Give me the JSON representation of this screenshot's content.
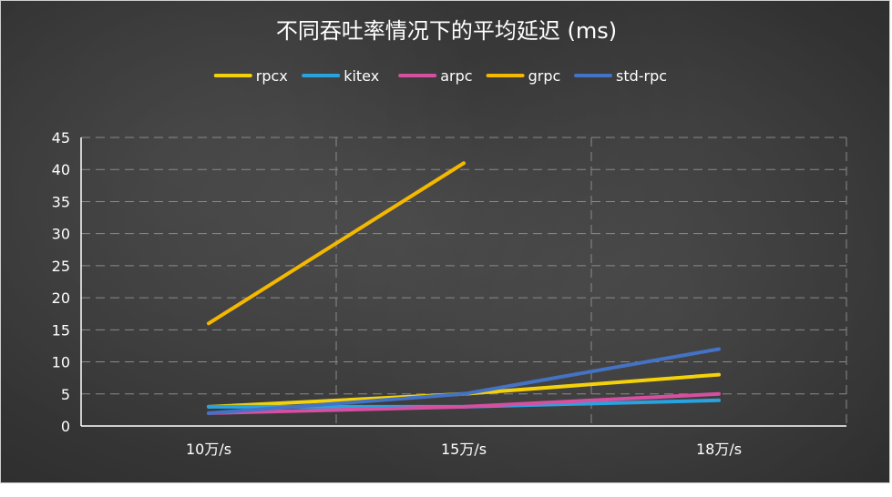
{
  "chart_data": {
    "type": "line",
    "title": "不同吞吐率情况下的平均延迟 (ms)",
    "categories": [
      "10万/s",
      "15万/s",
      "18万/s"
    ],
    "xlabel": "",
    "ylabel": "",
    "ylim": [
      0,
      45
    ],
    "yticks": [
      0,
      5,
      10,
      15,
      20,
      25,
      30,
      35,
      40,
      45
    ],
    "grid": true,
    "legend_position": "top",
    "series": [
      {
        "name": "rpcx",
        "color": "#f4d20b",
        "values": [
          3,
          5,
          8
        ]
      },
      {
        "name": "kitex",
        "color": "#29a3e0",
        "values": [
          3,
          3,
          4
        ]
      },
      {
        "name": "arpc",
        "color": "#d64fa0",
        "values": [
          2,
          3,
          5
        ]
      },
      {
        "name": "grpc",
        "color": "#f5b800",
        "values": [
          16,
          41,
          null
        ]
      },
      {
        "name": "std-rpc",
        "color": "#4472c4",
        "values": [
          2,
          5,
          12
        ]
      }
    ]
  }
}
